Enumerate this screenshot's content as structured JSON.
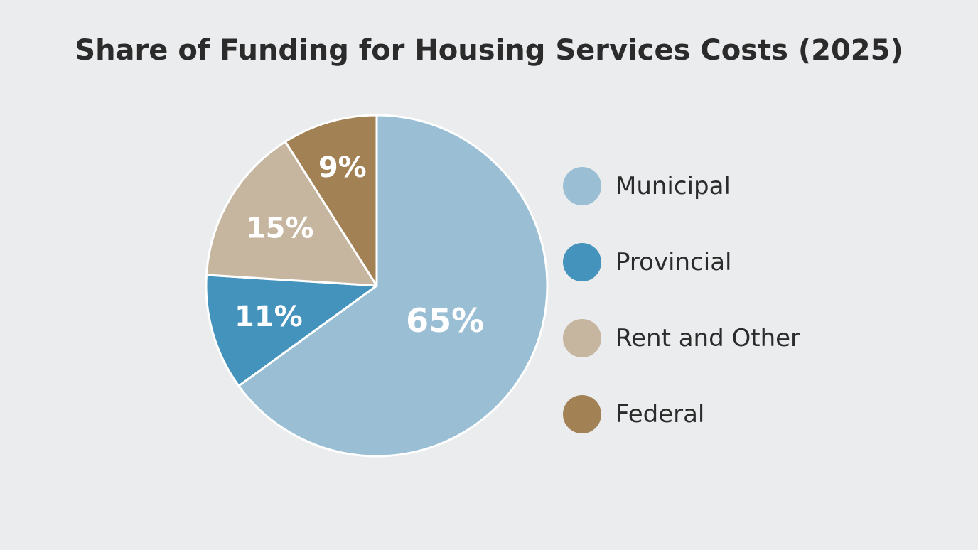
{
  "chart_data": {
    "type": "pie",
    "title": "Share of Funding for Housing Services Costs (2025)",
    "unit": "%",
    "slices": [
      {
        "name": "Municipal",
        "value": 65,
        "label": "65%",
        "color": "#9abfd5"
      },
      {
        "name": "Provincial",
        "value": 11,
        "label": "11%",
        "color": "#4393bd"
      },
      {
        "name": "Rent and Other",
        "value": 15,
        "label": "15%",
        "color": "#c6b59f"
      },
      {
        "name": "Federal",
        "value": 9,
        "label": "9%",
        "color": "#a28155"
      }
    ],
    "legend_position": "right"
  }
}
